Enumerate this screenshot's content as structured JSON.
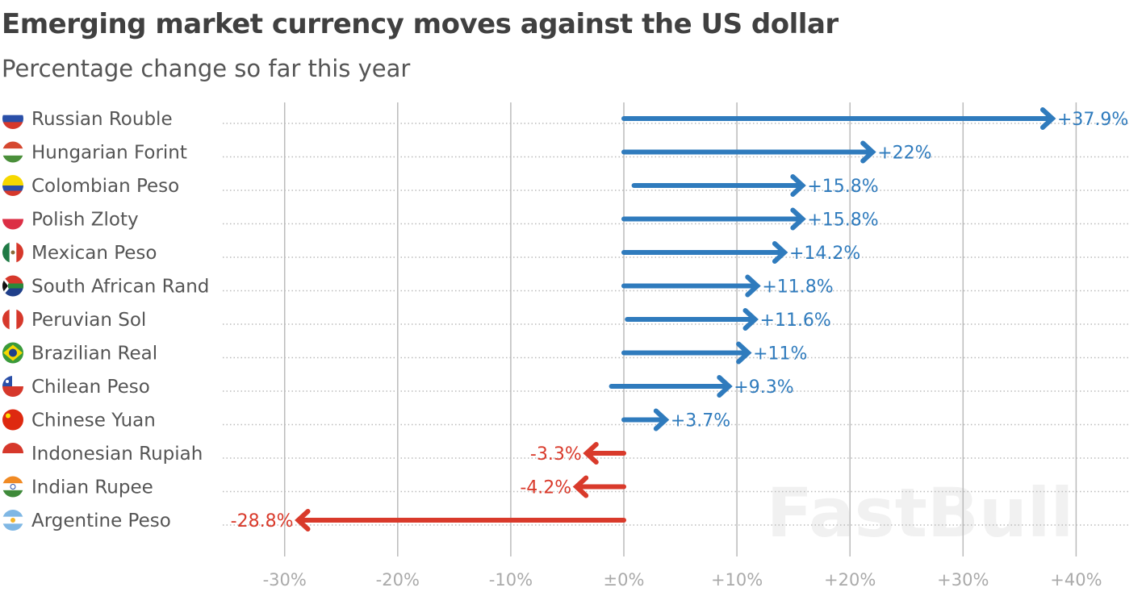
{
  "title": "Emerging market currency moves against the US dollar",
  "subtitle": "Percentage change so far this year",
  "watermark": "FastBull",
  "colors": {
    "positive": "#2f7bbd",
    "negative": "#d93a2b",
    "label": "#555555",
    "grid": "#bbbbbb"
  },
  "chart_data": {
    "type": "bar",
    "title": "Emerging market currency moves against the US dollar",
    "subtitle": "Percentage change so far this year",
    "xlim": [
      -30,
      40
    ],
    "ticks": [
      -30,
      -20,
      -10,
      0,
      10,
      20,
      30,
      40
    ],
    "tick_labels": [
      "-30%",
      "-20%",
      "-10%",
      "±0%",
      "+10%",
      "+20%",
      "+30%",
      "+40%"
    ],
    "grid": true,
    "orientation": "horizontal",
    "categories": [
      "Russian Rouble",
      "Hungarian Forint",
      "Colombian Peso",
      "Polish Zloty",
      "Mexican Peso",
      "South African Rand",
      "Peruvian Sol",
      "Brazilian Real",
      "Chilean Peso",
      "Chinese Yuan",
      "Indonesian Rupiah",
      "Indian Rupee",
      "Argentine Peso"
    ],
    "flags": [
      "russia",
      "hungary",
      "colombia",
      "poland",
      "mexico",
      "south-africa",
      "peru",
      "brazil",
      "chile",
      "china",
      "indonesia",
      "india",
      "argentina"
    ],
    "values": [
      37.9,
      22,
      15.8,
      15.8,
      14.2,
      11.8,
      11.6,
      11,
      9.3,
      3.7,
      -3.3,
      -4.2,
      -28.8
    ],
    "starts": [
      0,
      0,
      0.9,
      0,
      0,
      0,
      0.3,
      0,
      -1.1,
      0,
      0,
      0,
      0
    ],
    "value_labels": [
      "+37.9%",
      "+22%",
      "+15.8%",
      "+15.8%",
      "+14.2%",
      "+11.8%",
      "+11.6%",
      "+11%",
      "+9.3%",
      "+3.7%",
      "-3.3%",
      "-4.2%",
      "-28.8%"
    ]
  }
}
